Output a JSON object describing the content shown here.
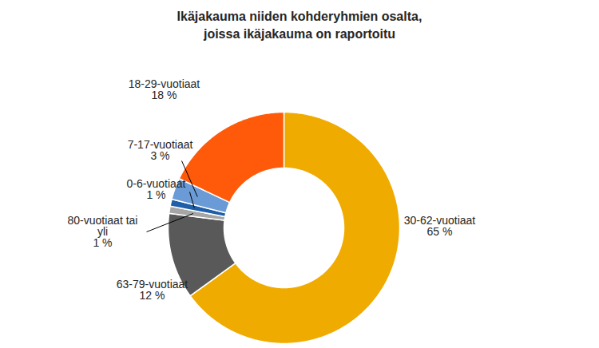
{
  "chart_data": {
    "type": "pie",
    "title": "Ikäjakauma niiden kohderyhmien osalta, joissa ikäjakauma on raportoitu",
    "categories": [
      "30-62-vuotiaat",
      "63-79-vuotiaat",
      "80-vuotiaat tai yli",
      "0-6-vuotiaat",
      "7-17-vuotiaat",
      "18-29-vuotiaat"
    ],
    "values": [
      65,
      12,
      1,
      1,
      3,
      18
    ],
    "value_labels": [
      "65 %",
      "12 %",
      "1 %",
      "1 %",
      "3 %",
      "18 %"
    ],
    "colors": [
      "#f0ab00",
      "#595959",
      "#a6a6a6",
      "#1f5fa8",
      "#6a9bd6",
      "#ff5a0a"
    ],
    "data_labels": true
  }
}
